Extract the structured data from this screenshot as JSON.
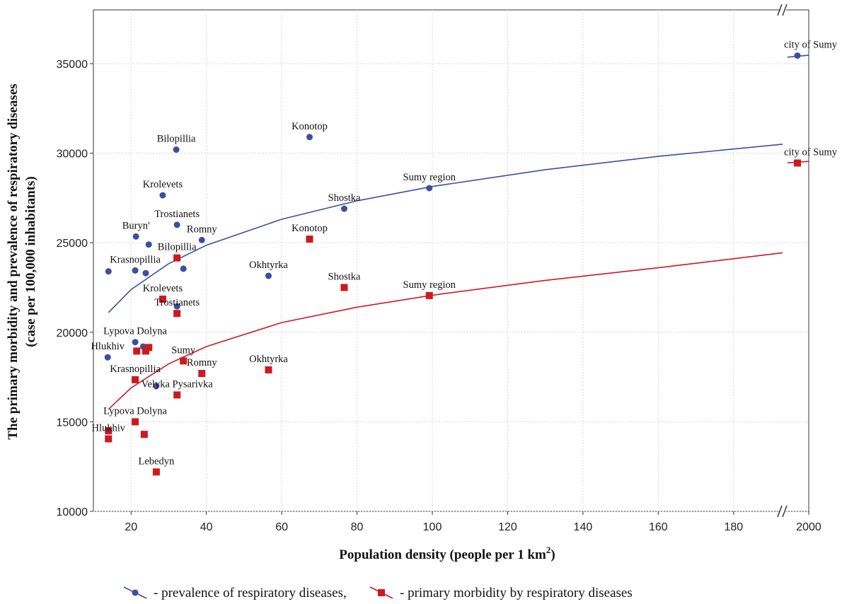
{
  "chart_data": {
    "type": "scatter",
    "xlabel": [
      "Population density (people per 1 km",
      "2",
      ")"
    ],
    "ylabel": [
      "The primary morbidity and prevalence of respiratory diseases",
      "(case per 100,000 inhabitants)"
    ],
    "xlim": [
      10,
      2000
    ],
    "xbreak": [
      193,
      1930
    ],
    "xticks": [
      20,
      40,
      60,
      80,
      100,
      120,
      140,
      160,
      180,
      2000
    ],
    "ylim": [
      10000,
      38000
    ],
    "yticks": [
      10000,
      15000,
      20000,
      25000,
      30000,
      35000
    ],
    "grid": true,
    "series": [
      {
        "name": "- prevalence of respiratory diseases,",
        "color": "#3c4f9e",
        "marker": "circle",
        "x": [
          67.4,
          32.0,
          28.4,
          32.2,
          99.2,
          76.6,
          21.3,
          24.7,
          38.8,
          14.0,
          21.1,
          23.9,
          33.9,
          56.5,
          32.2,
          21.1,
          23.2,
          13.8,
          26.7,
          1968
        ],
        "values": [
          30900,
          30200,
          27650,
          26000,
          28050,
          26900,
          25350,
          24900,
          25150,
          23400,
          23450,
          23300,
          23550,
          23150,
          21450,
          19450,
          19200,
          18600,
          17000,
          35450
        ],
        "labels": [
          "Konotop",
          "Bilopillia",
          "Krolevets",
          "Trostianets",
          "Sumy region",
          "Shostka",
          "Buryn'",
          null,
          "Romny",
          null,
          "Krasnopillia",
          null,
          null,
          "Okhtyrka",
          null,
          "Lypova Dolyna",
          null,
          "Hlukhiv",
          null,
          "city of Sumy"
        ],
        "fit": {
          "x": [
            14,
            20,
            30,
            40,
            60,
            80,
            100,
            130,
            160,
            193,
            null,
            1940,
            2000
          ],
          "values": [
            21100,
            22380,
            23830,
            24860,
            26310,
            27340,
            28140,
            29080,
            29820,
            30500,
            null,
            35360,
            35470
          ]
        }
      },
      {
        "name": "- primary morbidity by respiratory diseases",
        "color": "#cc1a1f",
        "marker": "square",
        "x": [
          67.4,
          32.2,
          76.6,
          99.2,
          28.4,
          32.2,
          21.5,
          23.9,
          24.7,
          33.9,
          38.8,
          56.5,
          21.1,
          32.2,
          21.1,
          23.5,
          14.0,
          14.0,
          26.7,
          1968
        ],
        "values": [
          25200,
          24150,
          22500,
          22050,
          21850,
          21050,
          18950,
          18950,
          19150,
          18400,
          17700,
          17900,
          17350,
          16500,
          15000,
          14300,
          14500,
          14050,
          12200,
          29450
        ],
        "labels": [
          "Konotop",
          "Bilopillia",
          "Shostka",
          "Sumy region",
          "Krolevets",
          "Trostianets",
          null,
          null,
          null,
          "Sumy",
          "Romny",
          "Okhtyrka",
          "Krasnopillia",
          "Velyka Pysarivka",
          "Lypova Dolyna",
          null,
          null,
          "Hlukhiv",
          "Lebedyn",
          "city of Sumy"
        ],
        "fit": {
          "x": [
            14,
            20,
            30,
            40,
            60,
            80,
            100,
            130,
            160,
            193,
            null,
            1940,
            2000
          ],
          "values": [
            15700,
            16890,
            18240,
            19200,
            20540,
            21400,
            22070,
            22900,
            23600,
            24440,
            null,
            29460,
            29540
          ]
        }
      }
    ]
  }
}
